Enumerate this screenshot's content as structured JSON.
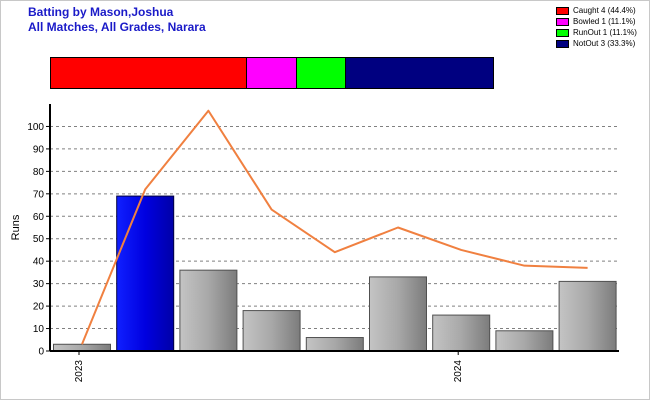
{
  "header": {
    "title_line1": "Batting by Mason,Joshua",
    "title_line2": "All Matches, All Grades, Narara"
  },
  "legend": [
    {
      "label": "Caught 4 (44.4%)",
      "color": "#ff0000",
      "value": 4
    },
    {
      "label": "Bowled 1 (11.1%)",
      "color": "#ff00ff",
      "value": 1
    },
    {
      "label": "RunOut 1 (11.1%)",
      "color": "#00ff00",
      "value": 1
    },
    {
      "label": "NotOut 3 (33.3%)",
      "color": "#000080",
      "value": 3
    }
  ],
  "chart_data": {
    "type": "bar",
    "ylabel": "Runs",
    "ylim": [
      0,
      110
    ],
    "yticks": [
      0,
      10,
      20,
      30,
      40,
      50,
      60,
      70,
      80,
      90,
      100
    ],
    "grid": true,
    "x_labels": [
      {
        "text": "2023",
        "index": 0
      },
      {
        "text": "2024",
        "index": 6
      }
    ],
    "series": [
      {
        "type": "bar",
        "values": [
          3,
          69,
          36,
          18,
          6,
          33,
          16,
          9,
          31
        ],
        "highlight_index": 1,
        "highlight_color": "#0000e0",
        "bar_color": "#a8a8a8"
      },
      {
        "type": "line",
        "values": [
          3,
          72,
          107,
          63,
          44,
          55,
          45,
          38,
          37
        ],
        "color": "#f08040"
      }
    ]
  }
}
